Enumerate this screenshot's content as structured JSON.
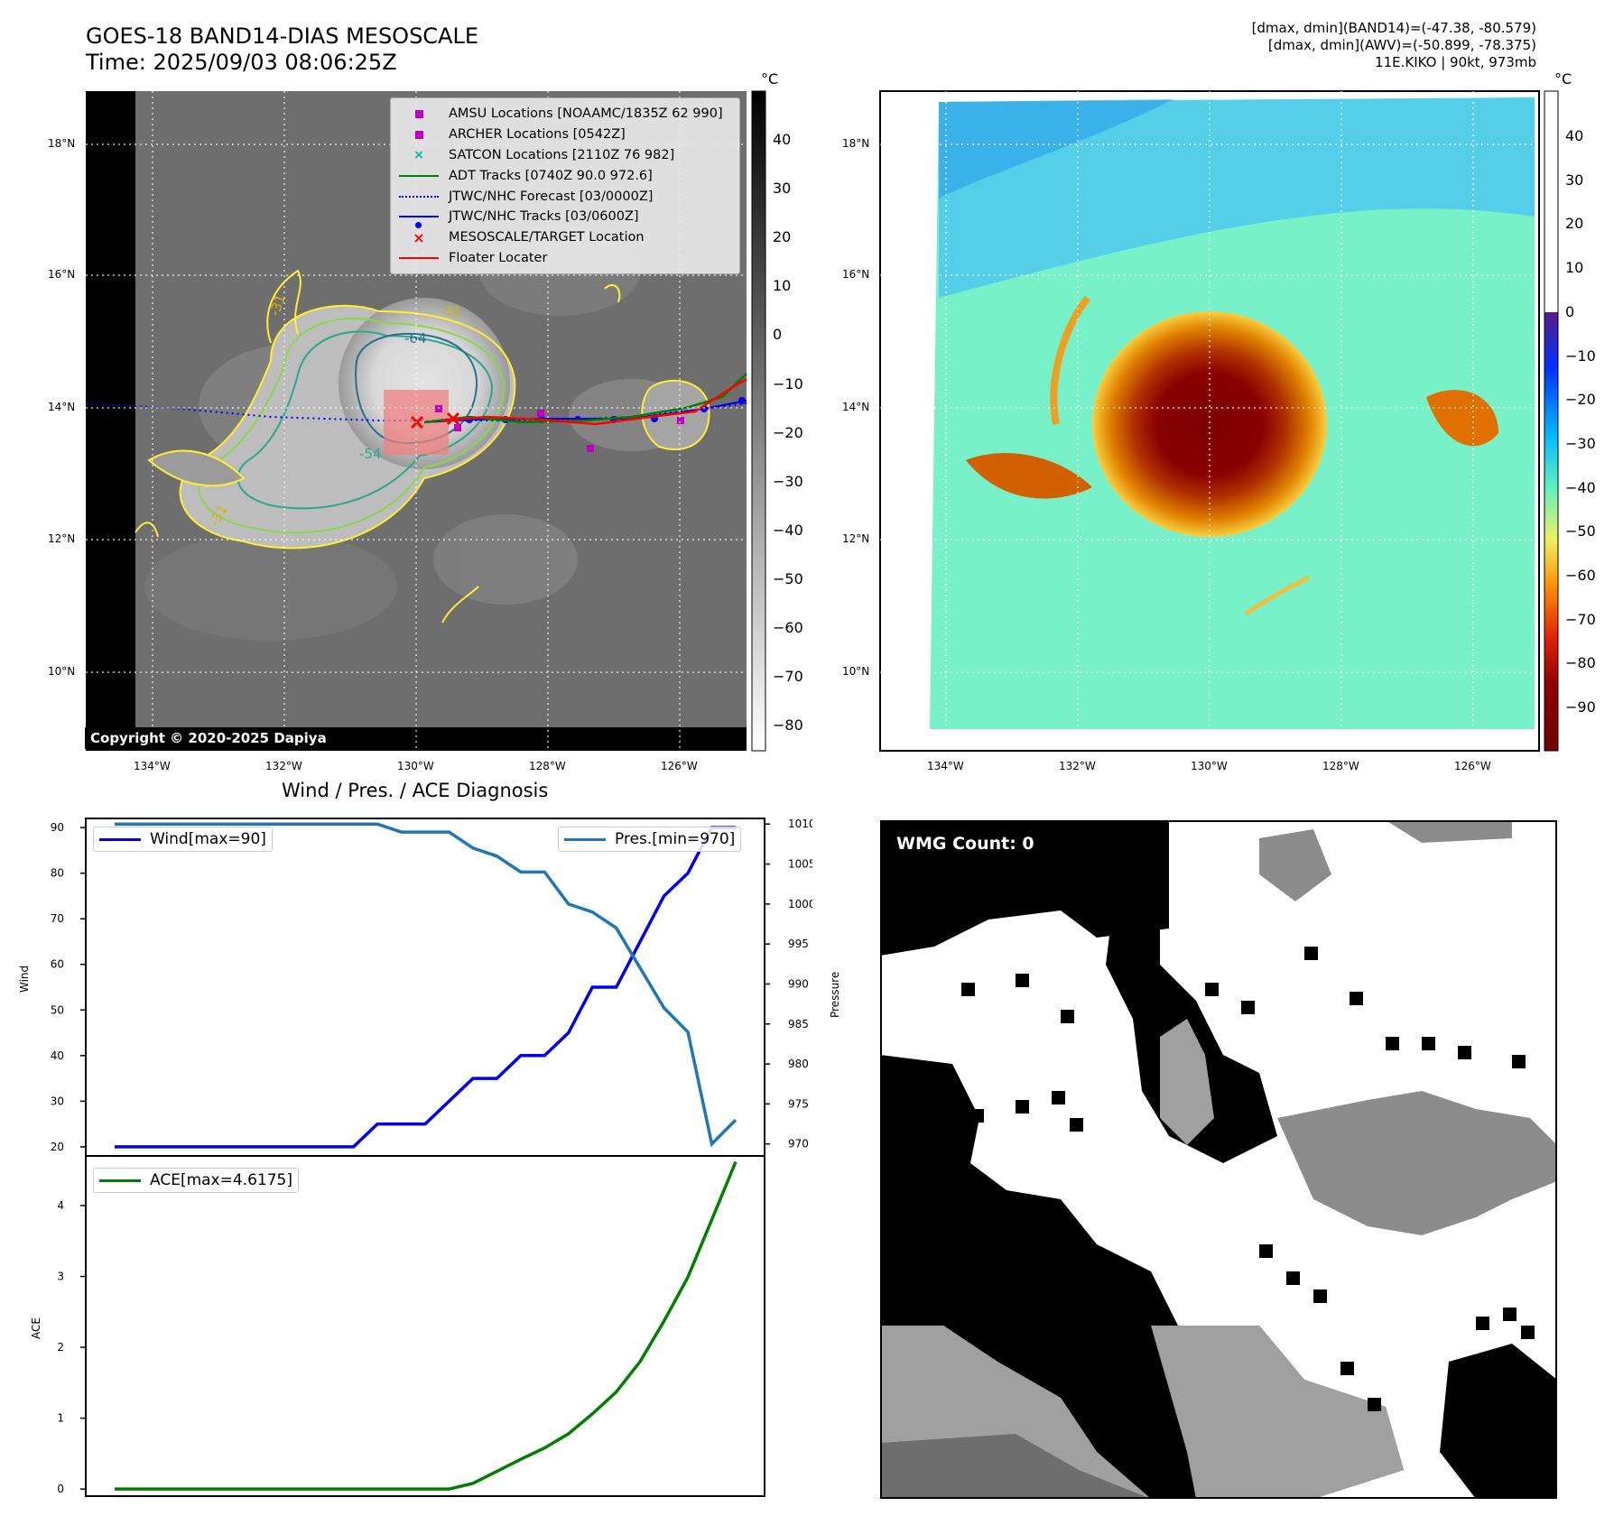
{
  "header": {
    "title_line1": "GOES-18 BAND14-DIAS MESOSCALE",
    "title_line2": "Time: 2025/09/03 08:06:25Z",
    "info_line1": "[dmax, dmin](BAND14)=(-47.38, -80.579)",
    "info_line2": "[dmax, dmin](AWV)=(-50.899, -78.375)",
    "info_line3": "11E.KIKO | 90kt, 973mb"
  },
  "map": {
    "lat_labels": [
      "18°N",
      "16°N",
      "14°N",
      "12°N",
      "10°N"
    ],
    "lon_labels": [
      "134°W",
      "132°W",
      "130°W",
      "128°W",
      "126°W"
    ],
    "contour_labels": [
      "-31",
      "-64",
      "-54",
      "-31",
      "-31"
    ],
    "copyright": "Copyright © 2020-2025 Dapiya"
  },
  "legend": {
    "items": [
      {
        "label": "AMSU Locations [NOAAMC/1835Z 62 990]",
        "symbol": "square",
        "color": "#c000c0"
      },
      {
        "label": "ARCHER Locations [0542Z]",
        "symbol": "square",
        "color": "#c000c0"
      },
      {
        "label": "SATCON Locations [2110Z 76 982]",
        "symbol": "x",
        "color": "#00b0b0"
      },
      {
        "label": "ADT Tracks [0740Z 90.0 972.6]",
        "symbol": "line",
        "color": "#008000"
      },
      {
        "label": "JTWC/NHC Forecast [03/0000Z]",
        "symbol": "dotted",
        "color": "#0000ff"
      },
      {
        "label": "JTWC/NHC Tracks [03/0600Z]",
        "symbol": "line-dot",
        "color": "#0000ff"
      },
      {
        "label": "MESOSCALE/TARGET Location",
        "symbol": "x",
        "color": "#ff0000"
      },
      {
        "label": "Floater Locater",
        "symbol": "line",
        "color": "#ff0000"
      }
    ]
  },
  "colorbar_left": {
    "unit": "°C",
    "ticks": [
      "40",
      "30",
      "20",
      "10",
      "0",
      "−10",
      "−20",
      "−30",
      "−40",
      "−50",
      "−60",
      "−70",
      "−80"
    ]
  },
  "colorbar_right": {
    "unit": "°C",
    "ticks": [
      "40",
      "30",
      "20",
      "10",
      "0",
      "−10",
      "−20",
      "−30",
      "−40",
      "−50",
      "−60",
      "−70",
      "−80",
      "−90"
    ]
  },
  "diagnosis": {
    "title": "Wind / Pres. / ACE Diagnosis",
    "wind_legend": "Wind[max=90]",
    "pres_legend": "Pres.[min=970]",
    "ace_legend": "ACE[max=4.6175]",
    "wind_label": "Wind",
    "pres_label": "Pressure",
    "ace_label": "ACE"
  },
  "wmg": {
    "label": "WMG Count: 0"
  },
  "colors": {
    "wind": "#0000ee",
    "pressure": "#1f77b4",
    "ace": "#008000"
  },
  "chart_data": [
    {
      "type": "line",
      "title": "Wind / Pres. / ACE Diagnosis",
      "ylabel": "Wind",
      "ylim": [
        18,
        92
      ],
      "yticks": [
        20,
        30,
        40,
        50,
        60,
        70,
        80,
        90
      ],
      "series": [
        {
          "name": "Wind[max=90]",
          "axis": "left",
          "values": [
            20,
            20,
            20,
            20,
            20,
            20,
            20,
            20,
            20,
            20,
            20,
            25,
            25,
            25,
            30,
            35,
            35,
            40,
            40,
            45,
            55,
            55,
            65,
            75,
            80,
            90,
            90
          ]
        },
        {
          "name": "Pres.[min=970]",
          "axis": "right",
          "values": [
            1010,
            1010,
            1010,
            1010,
            1010,
            1010,
            1010,
            1010,
            1010,
            1010,
            1010,
            1010,
            1009,
            1009,
            1009,
            1007,
            1006,
            1004,
            1004,
            1000,
            999,
            997,
            992,
            987,
            984,
            970,
            973
          ]
        }
      ],
      "y2label": "Pressure",
      "y2lim": [
        968.5,
        1010.7
      ],
      "y2ticks": [
        970,
        975,
        980,
        985,
        990,
        995,
        1000,
        1005,
        1010
      ]
    },
    {
      "type": "line",
      "ylabel": "ACE",
      "ylim": [
        -0.1,
        4.7
      ],
      "yticks": [
        0,
        1,
        2,
        3,
        4
      ],
      "series": [
        {
          "name": "ACE[max=4.6175]",
          "values": [
            0,
            0,
            0,
            0,
            0,
            0,
            0,
            0,
            0,
            0,
            0,
            0,
            0,
            0,
            0,
            0.08,
            0.25,
            0.42,
            0.58,
            0.78,
            1.06,
            1.37,
            1.8,
            2.37,
            2.99,
            3.8,
            4.6175
          ]
        }
      ]
    }
  ]
}
